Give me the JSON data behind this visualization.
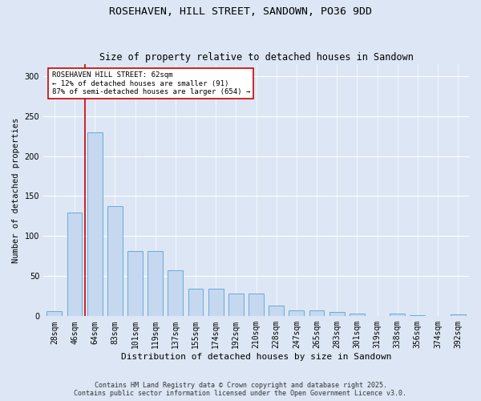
{
  "title_line1": "ROSEHAVEN, HILL STREET, SANDOWN, PO36 9DD",
  "title_line2": "Size of property relative to detached houses in Sandown",
  "xlabel": "Distribution of detached houses by size in Sandown",
  "ylabel": "Number of detached properties",
  "categories": [
    "28sqm",
    "46sqm",
    "64sqm",
    "83sqm",
    "101sqm",
    "119sqm",
    "137sqm",
    "155sqm",
    "174sqm",
    "192sqm",
    "210sqm",
    "228sqm",
    "247sqm",
    "265sqm",
    "283sqm",
    "301sqm",
    "319sqm",
    "338sqm",
    "356sqm",
    "374sqm",
    "392sqm"
  ],
  "values": [
    6,
    129,
    230,
    137,
    81,
    81,
    57,
    34,
    34,
    28,
    28,
    13,
    7,
    7,
    5,
    3,
    0,
    3,
    1,
    0,
    2
  ],
  "bar_color": "#c5d8f0",
  "bar_edge_color": "#6aaad4",
  "vline_x_index": 1.5,
  "vline_color": "#cc0000",
  "annotation_text": "ROSEHAVEN HILL STREET: 62sqm\n← 12% of detached houses are smaller (91)\n87% of semi-detached houses are larger (654) →",
  "annotation_box_color": "#ffffff",
  "annotation_box_edge_color": "#cc0000",
  "ylim": [
    0,
    315
  ],
  "yticks": [
    0,
    50,
    100,
    150,
    200,
    250,
    300
  ],
  "background_color": "#dce6f5",
  "grid_color": "#ffffff",
  "footer_line1": "Contains HM Land Registry data © Crown copyright and database right 2025.",
  "footer_line2": "Contains public sector information licensed under the Open Government Licence v3.0."
}
